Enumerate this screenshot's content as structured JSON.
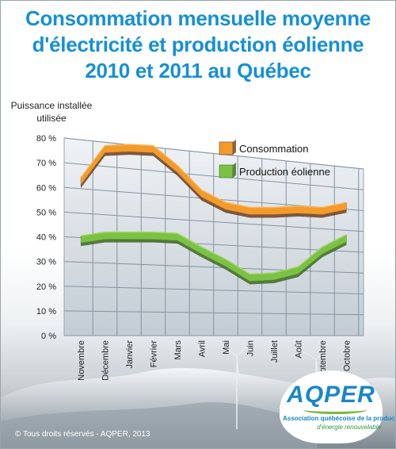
{
  "title_lines": [
    "Consommation mensuelle moyenne",
    "d'électricité et production éolienne",
    "2010 et 2011 au Québec"
  ],
  "copyright": "© Tous droits réservés - AQPER, 2013",
  "logo": {
    "name": "AQPER",
    "line1": "Association québécoise de la production",
    "line2": "d'énergie renouvelable"
  },
  "colors": {
    "title": "#1790d4",
    "consommation": "#f39a2a",
    "production": "#7cc242",
    "plot_background": "#d6dde3"
  },
  "chart_data": {
    "type": "area",
    "ylabel": "Puissance installée utilisée",
    "yticks": [
      "0 %",
      "10 %",
      "20 %",
      "30 %",
      "40 %",
      "50 %",
      "60 %",
      "70 %",
      "80 %"
    ],
    "ylim": [
      0,
      80
    ],
    "grid": true,
    "legend_position": "top-right",
    "categories": [
      "Novembre",
      "Décembre",
      "Janvier",
      "Février",
      "Mars",
      "Avril",
      "Mai",
      "Juin",
      "Juillet",
      "Août",
      "Septembre",
      "Octobre"
    ],
    "series": [
      {
        "name": "Consommation",
        "values": [
          61,
          74,
          74.5,
          74,
          66,
          56,
          51,
          49,
          49,
          49.5,
          49,
          51
        ],
        "color": "#f39a2a"
      },
      {
        "name": "Production éolienne",
        "values": [
          37.5,
          39,
          39,
          39,
          38.5,
          33,
          28,
          22,
          22.5,
          25,
          33,
          38
        ],
        "color": "#7cc242"
      }
    ]
  }
}
